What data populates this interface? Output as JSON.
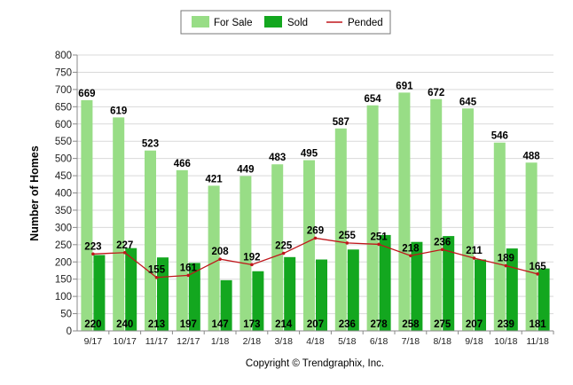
{
  "legend": {
    "items": [
      {
        "label": "For Sale",
        "color": "#98dd86"
      },
      {
        "label": "Sold",
        "color": "#13a71f"
      },
      {
        "label": "Pended",
        "color": "#c0161b"
      }
    ]
  },
  "footer": "Copyright © Trendgraphix, Inc.",
  "chart_data": {
    "type": "bar",
    "title": "",
    "xlabel": "",
    "ylabel": "Number of Homes",
    "ylim": [
      0,
      800
    ],
    "yticks": [
      0,
      50,
      100,
      150,
      200,
      250,
      300,
      350,
      400,
      450,
      500,
      550,
      600,
      650,
      700,
      750,
      800
    ],
    "grid": true,
    "legend_position": "top-center",
    "categories": [
      "9/17",
      "10/17",
      "11/17",
      "12/17",
      "1/18",
      "2/18",
      "3/18",
      "4/18",
      "5/18",
      "6/18",
      "7/18",
      "8/18",
      "9/18",
      "10/18",
      "11/18"
    ],
    "series": [
      {
        "name": "For Sale",
        "type": "bar",
        "color": "#98dd86",
        "values": [
          669,
          619,
          523,
          466,
          421,
          449,
          483,
          495,
          587,
          654,
          691,
          672,
          645,
          546,
          488
        ]
      },
      {
        "name": "Sold",
        "type": "bar",
        "color": "#13a71f",
        "values": [
          220,
          240,
          213,
          197,
          147,
          173,
          214,
          207,
          236,
          278,
          258,
          275,
          207,
          239,
          181
        ]
      },
      {
        "name": "Pended",
        "type": "line",
        "color": "#c0161b",
        "values": [
          223,
          227,
          155,
          161,
          208,
          192,
          225,
          269,
          255,
          251,
          218,
          236,
          211,
          189,
          165
        ]
      }
    ]
  }
}
